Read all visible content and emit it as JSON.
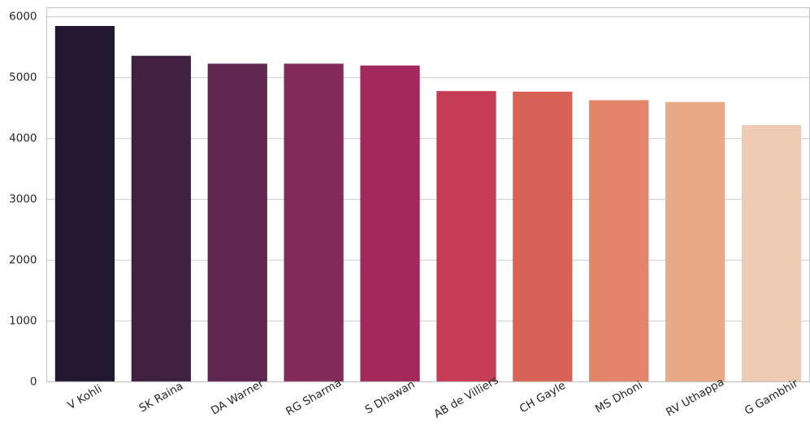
{
  "chart_data": {
    "type": "bar",
    "title": "",
    "xlabel": "",
    "ylabel": "",
    "categories": [
      "V Kohli",
      "SK Raina",
      "DA Warner",
      "RG Sharma",
      "S Dhawan",
      "AB de Villiers",
      "CH Gayle",
      "MS Dhoni",
      "RV Uthappa",
      "G Gambhir"
    ],
    "values": [
      5850,
      5360,
      5230,
      5230,
      5200,
      4780,
      4770,
      4630,
      4600,
      4220
    ],
    "bar_colors": [
      "#241830",
      "#40213f",
      "#5e2650",
      "#832a5a",
      "#a3295c",
      "#c63b55",
      "#d86256",
      "#e2856a",
      "#e8aa87",
      "#eecbb2"
    ],
    "ylim": [
      0,
      6150
    ],
    "yticks": [
      0,
      1000,
      2000,
      3000,
      4000,
      5000,
      6000
    ],
    "ytick_labels": [
      "0",
      "1000",
      "2000",
      "3000",
      "4000",
      "5000",
      "6000"
    ],
    "xtick_rotation_deg": -30,
    "grid": "horizontal",
    "style": {
      "grid_color": "#d3d3d3",
      "axes_edge_color": "#c8c8c8",
      "text_color": "#262626",
      "background": "#ffffff"
    }
  }
}
